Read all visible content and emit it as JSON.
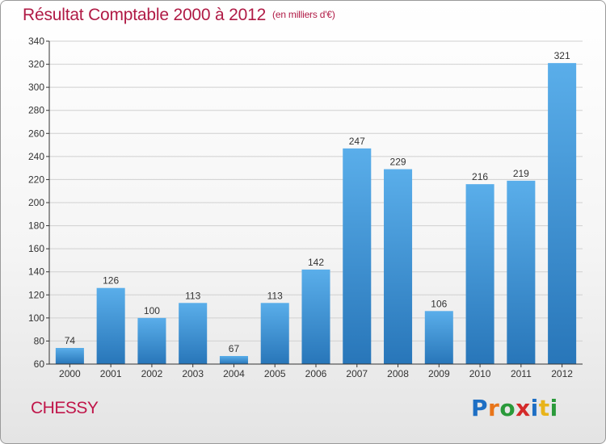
{
  "title": "Résultat Comptable 2000 à 2012",
  "unit_note": "(en milliers d'€)",
  "commune": "CHESSY",
  "logo": {
    "text": "Proxiti",
    "letters": [
      {
        "ch": "P",
        "color": "#1e6fc4"
      },
      {
        "ch": "r",
        "color": "#e8751a"
      },
      {
        "ch": "o",
        "color": "#2a9a3a"
      },
      {
        "ch": "x",
        "color": "#d42a2a"
      },
      {
        "ch": "i",
        "color": "#1e6fc4"
      },
      {
        "ch": "t",
        "color": "#e8b41a"
      },
      {
        "ch": "i",
        "color": "#2a9a3a"
      }
    ]
  },
  "colors": {
    "bar_top": "#5aaeea",
    "bar_bottom": "#2876b9",
    "grid": "#d0d0d0",
    "axis": "#333333",
    "text": "#333333"
  },
  "chart_data": {
    "type": "bar",
    "categories": [
      "2000",
      "2001",
      "2002",
      "2003",
      "2004",
      "2005",
      "2006",
      "2007",
      "2008",
      "2009",
      "2010",
      "2011",
      "2012"
    ],
    "values": [
      74,
      126,
      100,
      113,
      67,
      113,
      142,
      247,
      229,
      106,
      216,
      219,
      321
    ],
    "ylim": [
      60,
      340
    ],
    "ytick_step": 20,
    "grid": true,
    "legend": "none"
  }
}
